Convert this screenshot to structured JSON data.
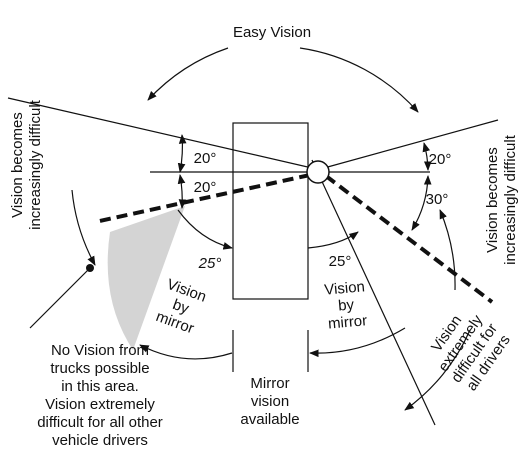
{
  "labels": {
    "easy_vision": "Easy Vision",
    "left_difficult": [
      "Vision becomes",
      "increasingly difficult"
    ],
    "right_difficult": [
      "Vision becomes",
      "increasingly difficult"
    ],
    "angles": [
      "20°",
      "20°",
      "20°",
      "30°",
      "25°",
      "25°"
    ],
    "left_mirror": [
      "Vision",
      "by",
      "mirror"
    ],
    "right_mirror": [
      "Vision",
      "by",
      "mirror"
    ],
    "extremely_difficult": [
      "Vision",
      "extremely",
      "difficult for",
      "all drivers"
    ],
    "no_vision": [
      "No Vision from",
      "trucks possible",
      "in this area.",
      "Vision extremely",
      "difficult for all other",
      "vehicle drivers"
    ],
    "mirror_available": [
      "Mirror",
      "vision",
      "available"
    ]
  }
}
